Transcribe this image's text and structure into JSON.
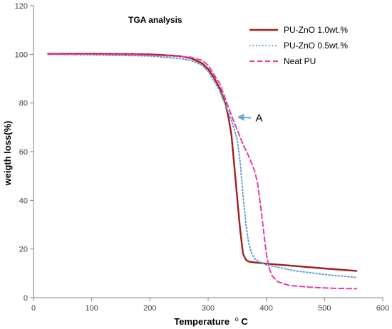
{
  "chart_data": {
    "type": "line",
    "title": "TGA analysis",
    "xlabel": "Temperature",
    "xlabel_unit": "oC",
    "ylabel": "weigth loss(%)",
    "xlim": [
      0,
      600
    ],
    "ylim": [
      0,
      120
    ],
    "xticks": [
      0,
      100,
      200,
      300,
      400,
      500,
      600
    ],
    "yticks": [
      0,
      20,
      40,
      60,
      80,
      100,
      120
    ],
    "grid": false,
    "legend_position": "top-right",
    "annotation": {
      "text": "A",
      "x": 352,
      "y": 73
    },
    "series": [
      {
        "name": "PU-ZnO 1.0wt.%",
        "color": "#a11d1d",
        "style": "solid",
        "x": [
          25,
          100,
          200,
          250,
          270,
          290,
          300,
          310,
          320,
          330,
          335,
          340,
          345,
          350,
          355,
          360,
          365,
          370,
          380,
          400,
          450,
          500,
          555
        ],
        "y": [
          100.2,
          100.3,
          100.0,
          99.3,
          98.5,
          96.3,
          94,
          90.5,
          86,
          79.5,
          74,
          67,
          54,
          41,
          28,
          18,
          15.5,
          14.8,
          14.5,
          14,
          13,
          12,
          11
        ]
      },
      {
        "name": "PU-ZnO 0.5wt.%",
        "color": "#5b9bd5",
        "style": "dotted",
        "x": [
          25,
          100,
          200,
          250,
          270,
          290,
          300,
          320,
          340,
          350,
          355,
          360,
          365,
          370,
          375,
          380,
          390,
          400,
          450,
          500,
          555
        ],
        "y": [
          100.0,
          99.8,
          99.3,
          98.3,
          97.6,
          95.5,
          93,
          85,
          73,
          65,
          56,
          42,
          30,
          22,
          18,
          16,
          14.5,
          13.5,
          11,
          9.5,
          8.3
        ]
      },
      {
        "name": "Neat PU",
        "color": "#e83e9f",
        "style": "dashed",
        "x": [
          25,
          100,
          200,
          250,
          270,
          290,
          300,
          320,
          340,
          360,
          370,
          380,
          385,
          390,
          395,
          400,
          405,
          410,
          420,
          440,
          480,
          520,
          555
        ],
        "y": [
          100,
          100.1,
          99.7,
          99.2,
          98.8,
          97.5,
          95.5,
          88,
          75,
          63,
          58,
          52,
          47,
          38,
          28,
          18,
          12,
          9,
          6.5,
          5,
          4.2,
          3.8,
          3.7
        ]
      }
    ]
  }
}
